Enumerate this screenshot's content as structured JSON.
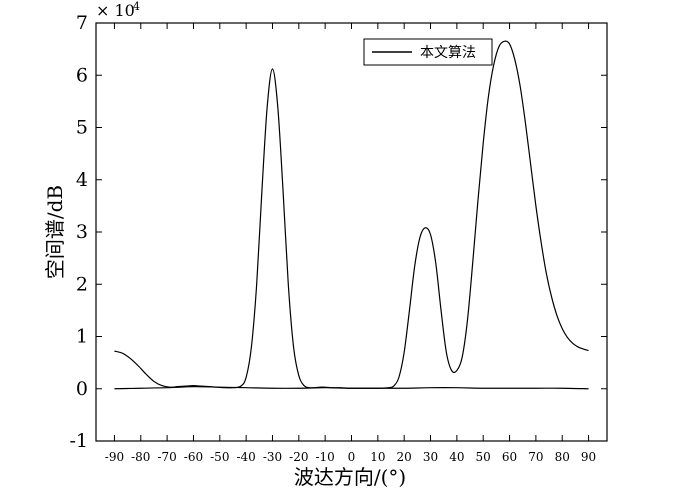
{
  "chart_data": {
    "type": "line",
    "title": "",
    "xlabel": "波达方向/(°)",
    "ylabel": "空间谱/dB",
    "y_exponent_label": "× 10",
    "y_exponent_power": "4",
    "xlim": [
      -97,
      97
    ],
    "ylim": [
      -1,
      7
    ],
    "x_ticks": [
      "-90",
      "-80",
      "-70",
      "-60",
      "-50",
      "-40",
      "-30",
      "-20",
      "-10",
      "0",
      "10",
      "20",
      "30",
      "40",
      "50",
      "60",
      "70",
      "80",
      "90"
    ],
    "y_ticks": [
      "-1",
      "0",
      "1",
      "2",
      "3",
      "4",
      "5",
      "6",
      "7"
    ],
    "grid": false,
    "legend_position": "top-right",
    "series": [
      {
        "name": "本文算法",
        "color": "#000000",
        "x": [
          -90,
          -87,
          -84,
          -81,
          -78,
          -75,
          -72,
          -69,
          -66,
          -63,
          -60,
          -57,
          -54,
          -51,
          -48,
          -45,
          -42,
          -40,
          -38,
          -36,
          -34,
          -32,
          -30,
          -28,
          -26,
          -24,
          -22,
          -20,
          -18,
          -16,
          -14,
          -12,
          -10,
          -7,
          -4,
          -1,
          2,
          5,
          8,
          11,
          14,
          16,
          18,
          20,
          22,
          24,
          26,
          28,
          30,
          32,
          34,
          36,
          38,
          40,
          42,
          44,
          46,
          48,
          50,
          52,
          54,
          56,
          58,
          60,
          62,
          64,
          66,
          68,
          70,
          72,
          74,
          76,
          78,
          80,
          82,
          84,
          86,
          88,
          90
        ],
        "values": [
          0.72,
          0.68,
          0.58,
          0.44,
          0.28,
          0.14,
          0.06,
          0.03,
          0.04,
          0.05,
          0.06,
          0.05,
          0.04,
          0.03,
          0.02,
          0.02,
          0.05,
          0.22,
          0.8,
          2.0,
          3.8,
          5.4,
          6.12,
          5.4,
          3.8,
          2.0,
          0.8,
          0.25,
          0.06,
          0.02,
          0.02,
          0.03,
          0.03,
          0.02,
          0.02,
          0.01,
          0.01,
          0.01,
          0.01,
          0.01,
          0.02,
          0.05,
          0.22,
          0.7,
          1.5,
          2.35,
          2.9,
          3.08,
          2.95,
          2.4,
          1.5,
          0.7,
          0.35,
          0.35,
          0.6,
          1.3,
          2.4,
          3.6,
          4.7,
          5.6,
          6.2,
          6.55,
          6.65,
          6.6,
          6.3,
          5.8,
          5.1,
          4.3,
          3.5,
          2.8,
          2.2,
          1.75,
          1.4,
          1.15,
          0.98,
          0.87,
          0.8,
          0.76,
          0.73
        ]
      },
      {
        "name": "",
        "color": "#000000",
        "x": [
          -90,
          -80,
          -70,
          -60,
          -50,
          -40,
          -30,
          -20,
          -10,
          0,
          10,
          20,
          30,
          40,
          50,
          60,
          70,
          80,
          90
        ],
        "values": [
          0.0,
          0.01,
          0.02,
          0.04,
          0.03,
          0.02,
          0.01,
          0.01,
          0.02,
          0.01,
          0.01,
          0.01,
          0.02,
          0.02,
          0.01,
          0.01,
          0.01,
          0.01,
          0.0
        ]
      }
    ]
  }
}
